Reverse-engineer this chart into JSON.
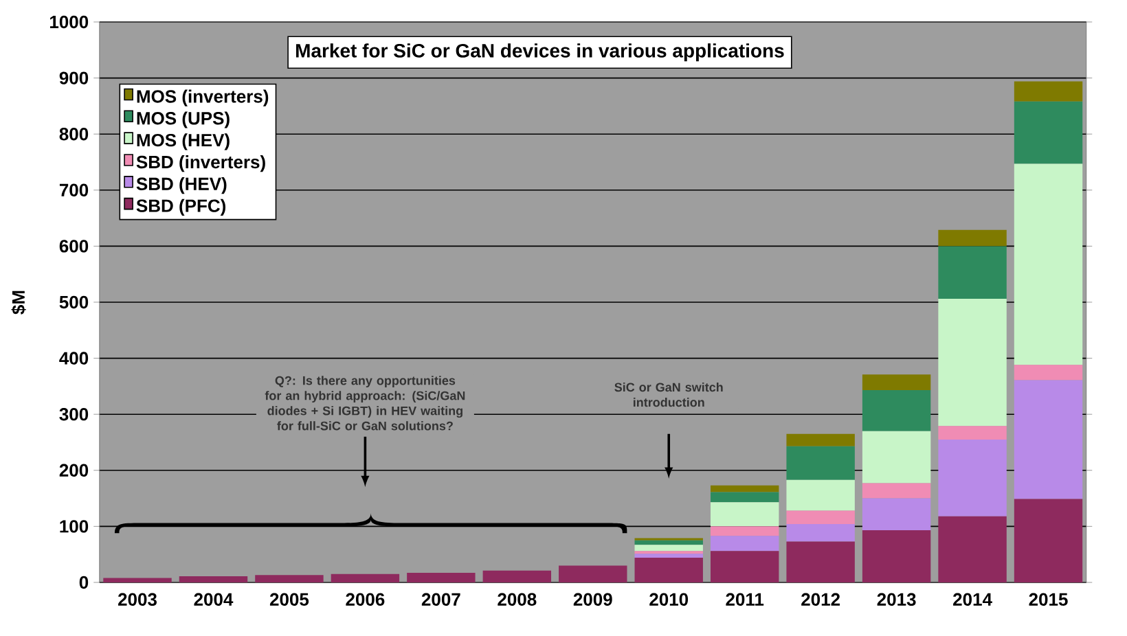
{
  "chart_data": {
    "type": "bar",
    "stacked": true,
    "title": "Market for SiC or GaN devices in various applications",
    "ylabel": "$M",
    "categories": [
      "2003",
      "2004",
      "2005",
      "2006",
      "2007",
      "2008",
      "2009",
      "2010",
      "2011",
      "2012",
      "2013",
      "2014",
      "2015"
    ],
    "series": [
      {
        "name": "SBD (PFC)",
        "color": "#8e2a5e",
        "values": [
          8,
          11,
          13,
          15,
          17,
          21,
          30,
          44,
          56,
          73,
          93,
          118,
          149
        ]
      },
      {
        "name": "SBD (HEV)",
        "color": "#b88ae8",
        "values": [
          0,
          0,
          0,
          0,
          0,
          0,
          0,
          7,
          27,
          31,
          57,
          137,
          212
        ]
      },
      {
        "name": "SBD (inverters)",
        "color": "#f08cb4",
        "values": [
          0,
          0,
          0,
          0,
          0,
          0,
          0,
          5,
          17,
          24,
          27,
          24,
          27
        ]
      },
      {
        "name": "MOS (HEV)",
        "color": "#c8f5c8",
        "values": [
          0,
          0,
          0,
          0,
          0,
          0,
          0,
          11,
          43,
          55,
          93,
          227,
          359
        ]
      },
      {
        "name": "MOS (UPS)",
        "color": "#2e8b5e",
        "values": [
          0,
          0,
          0,
          0,
          0,
          0,
          0,
          8,
          18,
          60,
          73,
          94,
          111
        ]
      },
      {
        "name": "MOS (inverters)",
        "color": "#7f7a00",
        "values": [
          0,
          0,
          0,
          0,
          0,
          0,
          0,
          4,
          12,
          22,
          28,
          29,
          36
        ]
      }
    ],
    "ylim": [
      0,
      1000
    ],
    "yticks": [
      0,
      100,
      200,
      300,
      400,
      500,
      600,
      700,
      800,
      900,
      1000
    ],
    "grid": "y",
    "legend": "top left",
    "annotations": [
      "Q?: Is there any opportunities for an hybrid approach: (SiC/GaN diodes + Si IGBT) in HEV waiting for full-SiC or GaN solutions?",
      "SiC or GaN switch introduction"
    ]
  }
}
